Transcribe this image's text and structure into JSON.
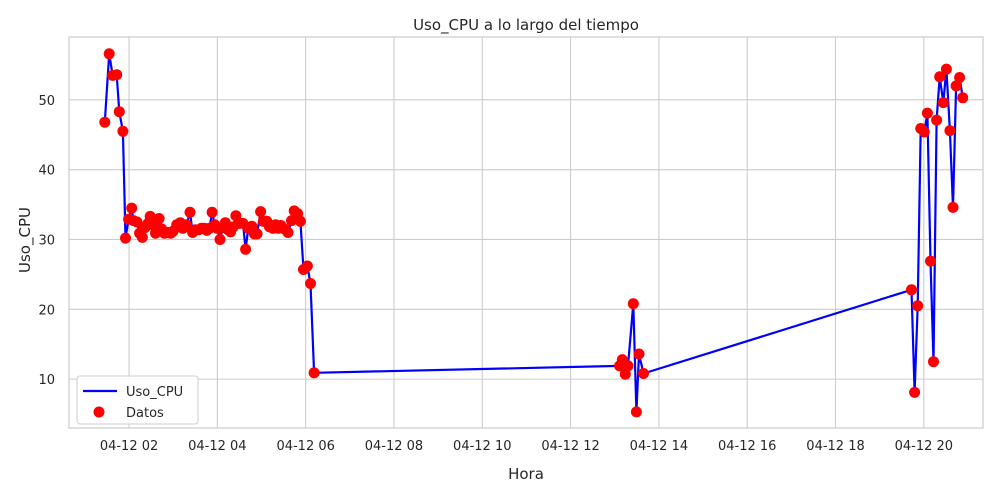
{
  "chart_data": {
    "type": "line",
    "title": "Uso_CPU a lo largo del tiempo",
    "xlabel": "Hora",
    "ylabel": "Uso_CPU",
    "x_ticks": [
      {
        "hour": 2,
        "label": "04-12 02"
      },
      {
        "hour": 4,
        "label": "04-12 04"
      },
      {
        "hour": 6,
        "label": "04-12 06"
      },
      {
        "hour": 8,
        "label": "04-12 08"
      },
      {
        "hour": 10,
        "label": "04-12 10"
      },
      {
        "hour": 12,
        "label": "04-12 12"
      },
      {
        "hour": 14,
        "label": "04-12 14"
      },
      {
        "hour": 16,
        "label": "04-12 16"
      },
      {
        "hour": 18,
        "label": "04-12 18"
      },
      {
        "hour": 20,
        "label": "04-12 20"
      }
    ],
    "y_ticks": [
      10,
      20,
      30,
      40,
      50
    ],
    "xlim": [
      0.64,
      21.34
    ],
    "ylim": [
      3.0,
      59.0
    ],
    "grid": true,
    "legend_position": "lower-left",
    "series": [
      {
        "name": "Uso_CPU",
        "role": "line",
        "color": "#0000ff"
      },
      {
        "name": "Datos",
        "role": "markers",
        "color": "#ff0000"
      }
    ],
    "points": [
      [
        1.45,
        46.8
      ],
      [
        1.55,
        56.6
      ],
      [
        1.63,
        53.5
      ],
      [
        1.72,
        53.6
      ],
      [
        1.78,
        48.3
      ],
      [
        1.86,
        45.5
      ],
      [
        1.92,
        30.2
      ],
      [
        1.99,
        32.9
      ],
      [
        2.06,
        34.5
      ],
      [
        2.1,
        32.7
      ],
      [
        2.18,
        32.5
      ],
      [
        2.24,
        30.9
      ],
      [
        2.3,
        30.3
      ],
      [
        2.36,
        31.7
      ],
      [
        2.43,
        32.3
      ],
      [
        2.48,
        33.3
      ],
      [
        2.54,
        32.1
      ],
      [
        2.6,
        30.9
      ],
      [
        2.68,
        33.0
      ],
      [
        2.74,
        31.5
      ],
      [
        2.8,
        30.9
      ],
      [
        2.88,
        31.0
      ],
      [
        2.94,
        30.9
      ],
      [
        3.0,
        31.2
      ],
      [
        3.08,
        32.1
      ],
      [
        3.16,
        32.4
      ],
      [
        3.22,
        31.6
      ],
      [
        3.3,
        32.1
      ],
      [
        3.38,
        33.9
      ],
      [
        3.44,
        31.0
      ],
      [
        3.5,
        31.4
      ],
      [
        3.58,
        31.4
      ],
      [
        3.64,
        31.6
      ],
      [
        3.7,
        31.6
      ],
      [
        3.76,
        31.3
      ],
      [
        3.82,
        31.6
      ],
      [
        3.88,
        33.9
      ],
      [
        3.94,
        32.1
      ],
      [
        4.0,
        31.6
      ],
      [
        4.06,
        30.0
      ],
      [
        4.12,
        31.7
      ],
      [
        4.18,
        32.4
      ],
      [
        4.24,
        31.4
      ],
      [
        4.3,
        31.1
      ],
      [
        4.36,
        31.8
      ],
      [
        4.42,
        33.4
      ],
      [
        4.5,
        32.3
      ],
      [
        4.58,
        32.3
      ],
      [
        4.64,
        28.6
      ],
      [
        4.7,
        31.6
      ],
      [
        4.78,
        31.9
      ],
      [
        4.84,
        30.8
      ],
      [
        4.9,
        30.8
      ],
      [
        4.98,
        34.0
      ],
      [
        5.04,
        32.6
      ],
      [
        5.12,
        32.6
      ],
      [
        5.18,
        31.8
      ],
      [
        5.26,
        31.6
      ],
      [
        5.32,
        32.1
      ],
      [
        5.38,
        31.6
      ],
      [
        5.44,
        32.0
      ],
      [
        5.52,
        31.5
      ],
      [
        5.6,
        31.0
      ],
      [
        5.68,
        32.7
      ],
      [
        5.74,
        34.1
      ],
      [
        5.82,
        33.7
      ],
      [
        5.88,
        32.6
      ],
      [
        5.95,
        25.7
      ],
      [
        6.04,
        26.2
      ],
      [
        6.11,
        23.7
      ],
      [
        6.19,
        10.9
      ],
      [
        13.11,
        11.9
      ],
      [
        13.17,
        12.8
      ],
      [
        13.24,
        10.7
      ],
      [
        13.3,
        11.9
      ],
      [
        13.42,
        20.8
      ],
      [
        13.49,
        5.3
      ],
      [
        13.55,
        13.6
      ],
      [
        13.65,
        10.8
      ],
      [
        19.72,
        22.8
      ],
      [
        19.79,
        8.1
      ],
      [
        19.86,
        20.5
      ],
      [
        19.93,
        45.9
      ],
      [
        20.01,
        45.4
      ],
      [
        20.08,
        48.1
      ],
      [
        20.15,
        26.9
      ],
      [
        20.22,
        12.5
      ],
      [
        20.29,
        47.1
      ],
      [
        20.36,
        53.3
      ],
      [
        20.44,
        49.6
      ],
      [
        20.51,
        54.4
      ],
      [
        20.59,
        45.6
      ],
      [
        20.66,
        34.6
      ],
      [
        20.73,
        52.0
      ],
      [
        20.81,
        53.2
      ],
      [
        20.88,
        50.3
      ]
    ]
  }
}
